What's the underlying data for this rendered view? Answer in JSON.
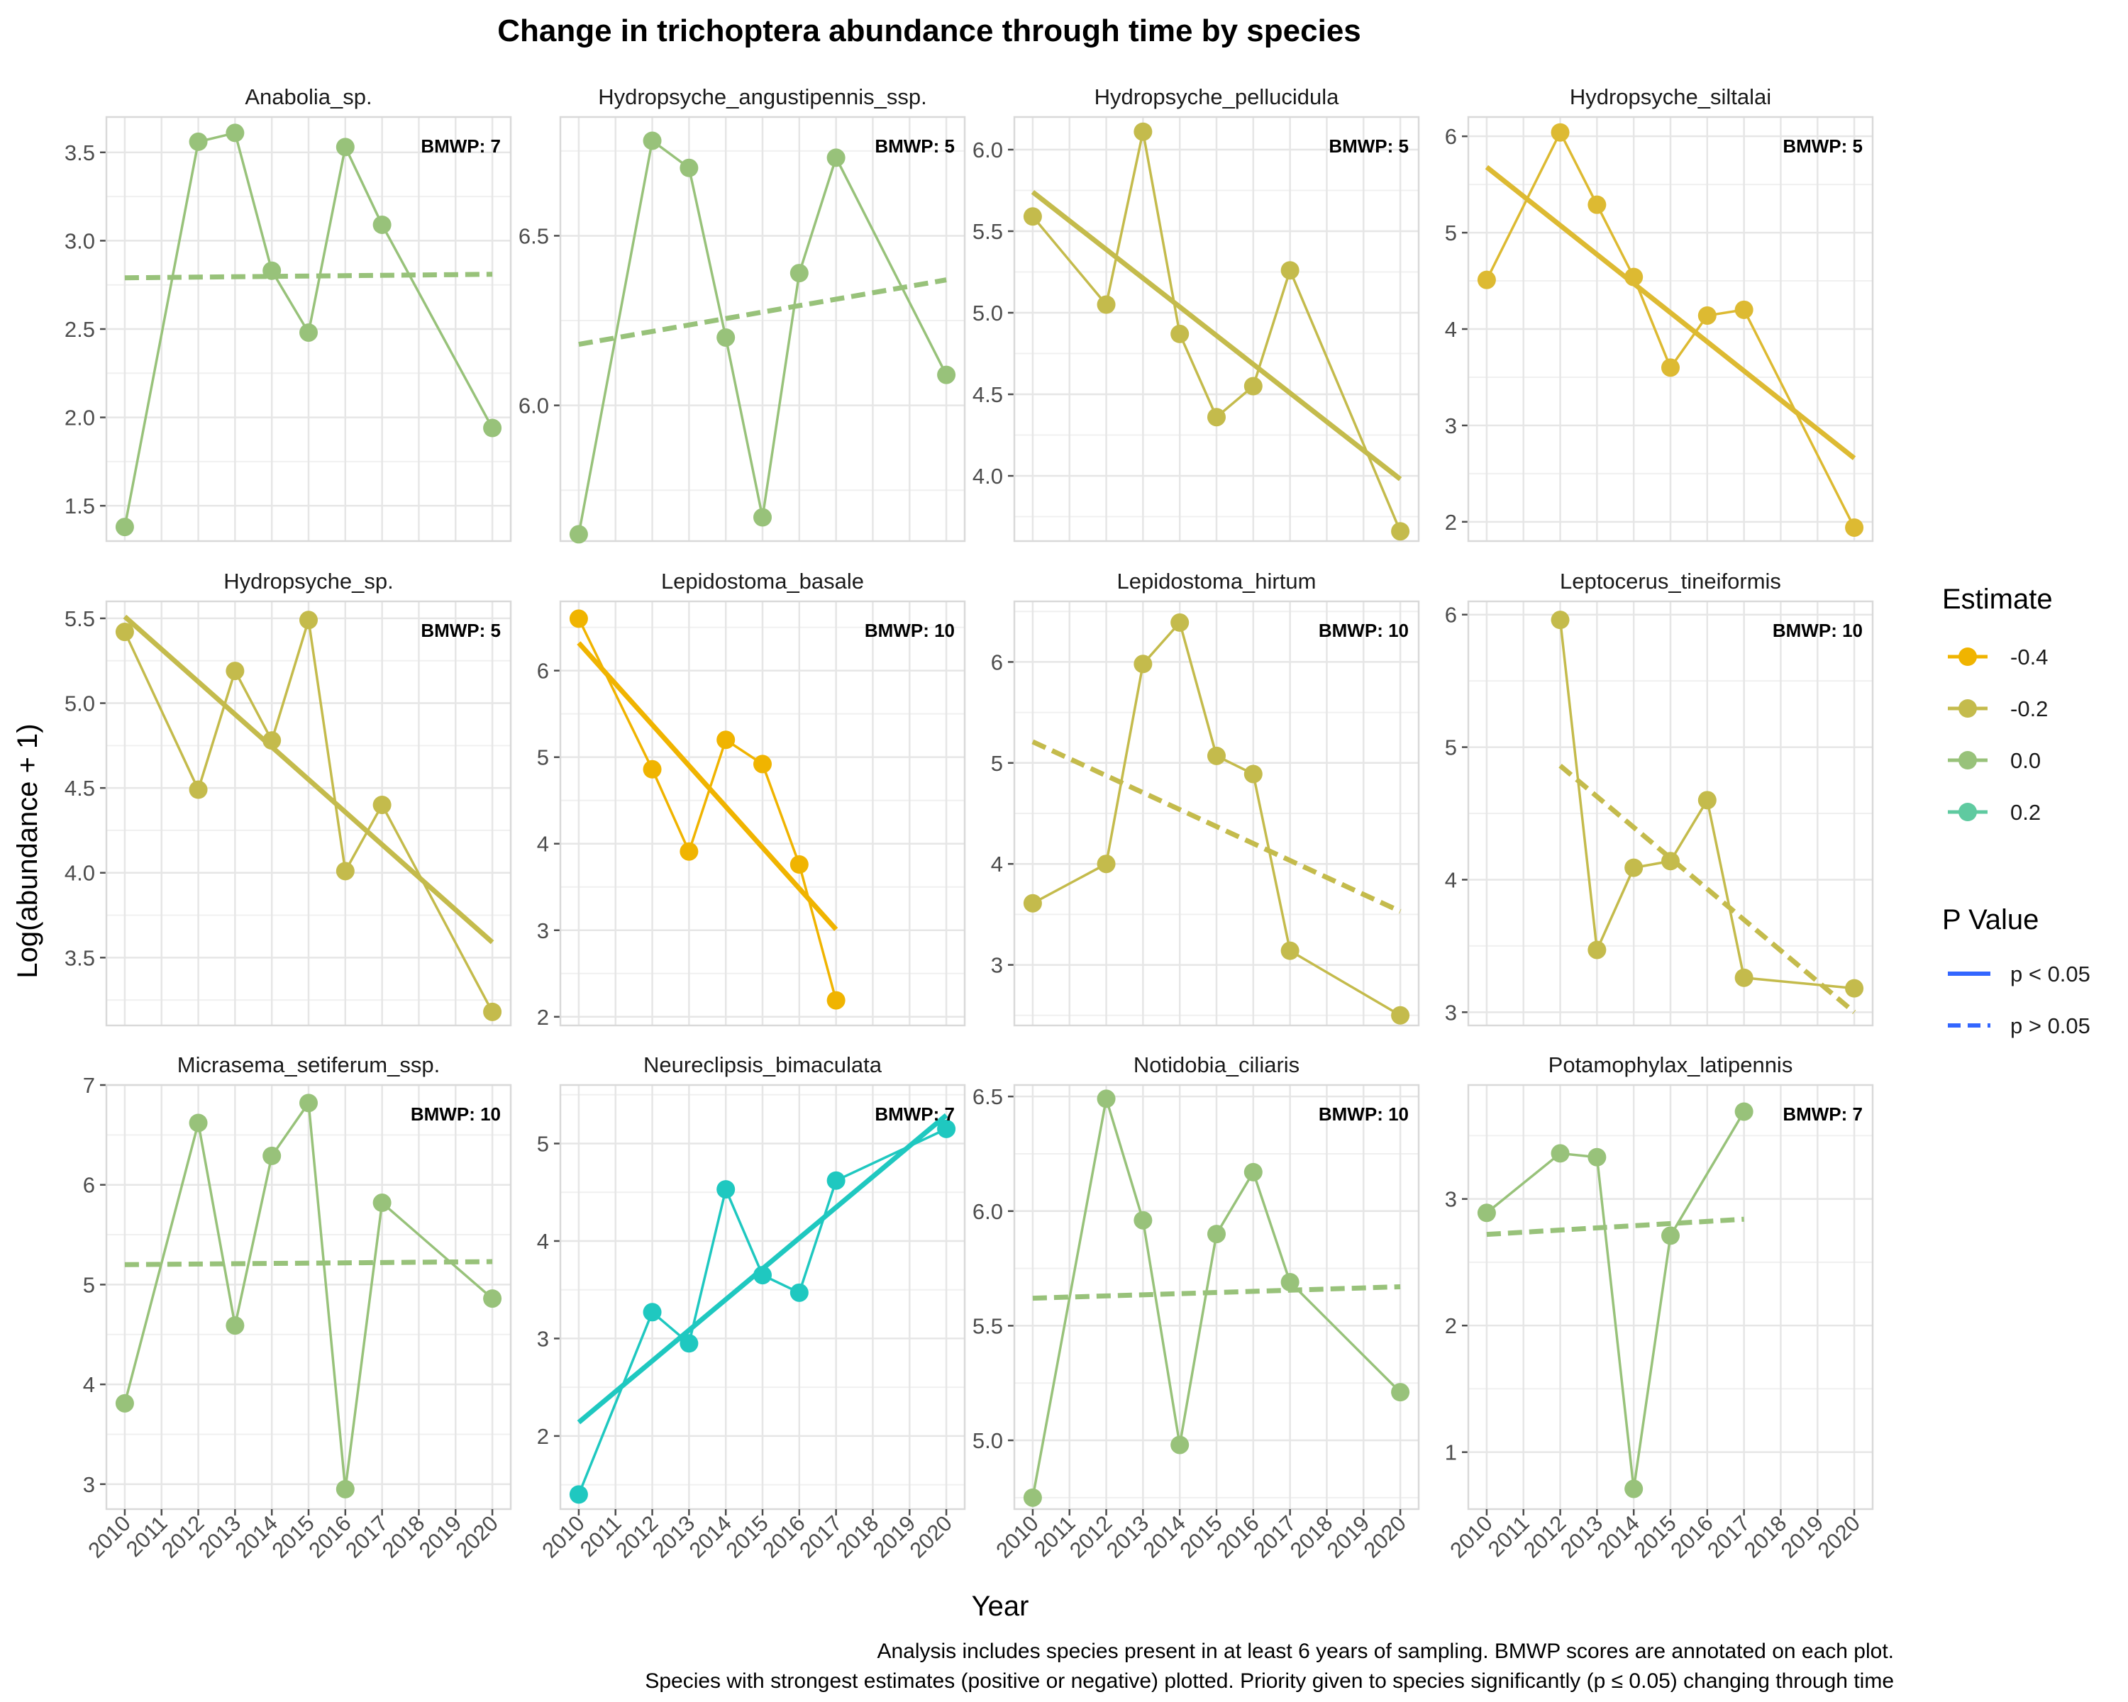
{
  "chart_data": {
    "type": "line",
    "title": "Change in trichoptera abundance through time by species",
    "xlabel": "Year",
    "ylabel": "Log(abundance + 1)",
    "x_ticks": [
      "2010",
      "2011",
      "2012",
      "2013",
      "2014",
      "2015",
      "2016",
      "2017",
      "2018",
      "2019",
      "2020"
    ],
    "caption": [
      "Analysis includes species present in at least 6 years of sampling. BMWP scores are annotated on each plot.",
      "Species with strongest estimates (positive or negative) plotted. Priority given to species significantly (p ≤ 0.05) changing through time"
    ],
    "grid": true,
    "facet_layout": "3 rows x 4 columns, free y scales, shared x axis",
    "legend_placement": "right",
    "legends": {
      "estimate": {
        "title": "Estimate",
        "entries": [
          {
            "label": "-0.4",
            "color": "#f0b400"
          },
          {
            "label": "-0.2",
            "color": "#c4bb4c"
          },
          {
            "label": "0.0",
            "color": "#98c27a"
          },
          {
            "label": "0.2",
            "color": "#5fcaa0"
          }
        ]
      },
      "pvalue": {
        "title": "P Value",
        "color": "#3366ff",
        "entries": [
          {
            "label": "p < 0.05",
            "linetype": "solid"
          },
          {
            "label": "p > 0.05",
            "linetype": "dashed"
          }
        ]
      }
    },
    "facets": [
      {
        "name": "Anabolia_sp.",
        "bmwp": "BMWP: 7",
        "color": "#98c27a",
        "significant": false,
        "ylim": [
          1.3,
          3.7
        ],
        "yticks": [
          "1.5",
          "2.0",
          "2.5",
          "3.0",
          "3.5"
        ],
        "ytick_values": [
          1.5,
          2.0,
          2.5,
          3.0,
          3.5
        ],
        "points": [
          [
            2010,
            1.38
          ],
          [
            2012,
            3.56
          ],
          [
            2013,
            3.61
          ],
          [
            2014,
            2.83
          ],
          [
            2015,
            2.48
          ],
          [
            2016,
            3.53
          ],
          [
            2017,
            3.09
          ],
          [
            2020,
            1.94
          ]
        ],
        "trend": [
          [
            2010,
            2.79
          ],
          [
            2020,
            2.81
          ]
        ]
      },
      {
        "name": "Hydropsyche_angustipennis_ssp.",
        "bmwp": "BMWP: 5",
        "color": "#98c27a",
        "significant": false,
        "ylim": [
          5.6,
          6.85
        ],
        "yticks": [
          "6.0",
          "6.5"
        ],
        "ytick_values": [
          6.0,
          6.5
        ],
        "points": [
          [
            2010,
            5.62
          ],
          [
            2012,
            6.78
          ],
          [
            2013,
            6.7
          ],
          [
            2014,
            6.2
          ],
          [
            2015,
            5.67
          ],
          [
            2016,
            6.39
          ],
          [
            2017,
            6.73
          ],
          [
            2020,
            6.09
          ]
        ],
        "trend": [
          [
            2010,
            6.18
          ],
          [
            2020,
            6.37
          ]
        ]
      },
      {
        "name": "Hydropsyche_pellucidula",
        "bmwp": "BMWP: 5",
        "color": "#c4bb4c",
        "significant": true,
        "ylim": [
          3.6,
          6.2
        ],
        "yticks": [
          "4.0",
          "4.5",
          "5.0",
          "5.5",
          "6.0"
        ],
        "ytick_values": [
          4.0,
          4.5,
          5.0,
          5.5,
          6.0
        ],
        "points": [
          [
            2010,
            5.59
          ],
          [
            2012,
            5.05
          ],
          [
            2013,
            6.11
          ],
          [
            2014,
            4.87
          ],
          [
            2015,
            4.36
          ],
          [
            2016,
            4.55
          ],
          [
            2017,
            5.26
          ],
          [
            2020,
            3.66
          ]
        ],
        "trend": [
          [
            2010,
            5.74
          ],
          [
            2020,
            3.98
          ]
        ]
      },
      {
        "name": "Hydropsyche_siltalai",
        "bmwp": "BMWP: 5",
        "color": "#ddba32",
        "significant": true,
        "ylim": [
          1.8,
          6.2
        ],
        "yticks": [
          "2",
          "3",
          "4",
          "5",
          "6"
        ],
        "ytick_values": [
          2,
          3,
          4,
          5,
          6
        ],
        "points": [
          [
            2010,
            4.51
          ],
          [
            2012,
            6.04
          ],
          [
            2013,
            5.29
          ],
          [
            2014,
            4.54
          ],
          [
            2015,
            3.6
          ],
          [
            2016,
            4.14
          ],
          [
            2017,
            4.2
          ],
          [
            2020,
            1.94
          ]
        ],
        "trend": [
          [
            2010,
            5.68
          ],
          [
            2020,
            2.66
          ]
        ]
      },
      {
        "name": "Hydropsyche_sp.",
        "bmwp": "BMWP: 5",
        "color": "#c4bb4c",
        "significant": true,
        "ylim": [
          3.1,
          5.6
        ],
        "yticks": [
          "3.5",
          "4.0",
          "4.5",
          "5.0",
          "5.5"
        ],
        "ytick_values": [
          3.5,
          4.0,
          4.5,
          5.0,
          5.5
        ],
        "points": [
          [
            2010,
            5.42
          ],
          [
            2012,
            4.49
          ],
          [
            2013,
            5.19
          ],
          [
            2014,
            4.78
          ],
          [
            2015,
            5.49
          ],
          [
            2016,
            4.01
          ],
          [
            2017,
            4.4
          ],
          [
            2020,
            3.18
          ]
        ],
        "trend": [
          [
            2010,
            5.51
          ],
          [
            2020,
            3.59
          ]
        ]
      },
      {
        "name": "Lepidostoma_basale",
        "bmwp": "BMWP: 10",
        "color": "#f0b400",
        "significant": true,
        "ylim": [
          1.9,
          6.8
        ],
        "yticks": [
          "2",
          "3",
          "4",
          "5",
          "6"
        ],
        "ytick_values": [
          2,
          3,
          4,
          5,
          6
        ],
        "points": [
          [
            2010,
            6.6
          ],
          [
            2012,
            4.86
          ],
          [
            2013,
            3.91
          ],
          [
            2014,
            5.2
          ],
          [
            2015,
            4.92
          ],
          [
            2016,
            3.76
          ],
          [
            2017,
            2.19
          ]
        ],
        "trend": [
          [
            2010,
            6.32
          ],
          [
            2017,
            3.01
          ]
        ]
      },
      {
        "name": "Lepidostoma_hirtum",
        "bmwp": "BMWP: 10",
        "color": "#c4bb4c",
        "significant": false,
        "ylim": [
          2.4,
          6.6
        ],
        "yticks": [
          "3",
          "4",
          "5",
          "6"
        ],
        "ytick_values": [
          3,
          4,
          5,
          6
        ],
        "points": [
          [
            2010,
            3.61
          ],
          [
            2012,
            4.0
          ],
          [
            2013,
            5.98
          ],
          [
            2014,
            6.39
          ],
          [
            2015,
            5.07
          ],
          [
            2016,
            4.89
          ],
          [
            2017,
            3.14
          ],
          [
            2020,
            2.5
          ]
        ],
        "trend": [
          [
            2010,
            5.21
          ],
          [
            2020,
            3.53
          ]
        ]
      },
      {
        "name": "Leptocerus_tineiformis",
        "bmwp": "BMWP: 10",
        "color": "#c4bb4c",
        "significant": false,
        "ylim": [
          2.9,
          6.1
        ],
        "yticks": [
          "3",
          "4",
          "5",
          "6"
        ],
        "ytick_values": [
          3,
          4,
          5,
          6
        ],
        "points": [
          [
            2012,
            5.96
          ],
          [
            2013,
            3.47
          ],
          [
            2014,
            4.09
          ],
          [
            2015,
            4.14
          ],
          [
            2016,
            4.6
          ],
          [
            2017,
            3.26
          ],
          [
            2020,
            3.18
          ]
        ],
        "trend": [
          [
            2012,
            4.86
          ],
          [
            2020,
            3.0
          ]
        ]
      },
      {
        "name": "Micrasema_setiferum_ssp.",
        "bmwp": "BMWP: 10",
        "color": "#98c27a",
        "significant": false,
        "ylim": [
          2.75,
          7.0
        ],
        "yticks": [
          "3",
          "4",
          "5",
          "6",
          "7"
        ],
        "ytick_values": [
          3,
          4,
          5,
          6,
          7
        ],
        "points": [
          [
            2010,
            3.81
          ],
          [
            2012,
            6.62
          ],
          [
            2013,
            4.59
          ],
          [
            2014,
            6.29
          ],
          [
            2015,
            6.82
          ],
          [
            2016,
            2.95
          ],
          [
            2017,
            5.82
          ],
          [
            2020,
            4.86
          ]
        ],
        "trend": [
          [
            2010,
            5.2
          ],
          [
            2020,
            5.23
          ]
        ]
      },
      {
        "name": "Neureclipsis_bimaculata",
        "bmwp": "BMWP: 7",
        "color": "#1fc8c0",
        "significant": true,
        "ylim": [
          1.25,
          5.6
        ],
        "yticks": [
          "2",
          "3",
          "4",
          "5"
        ],
        "ytick_values": [
          2,
          3,
          4,
          5
        ],
        "points": [
          [
            2010,
            1.4
          ],
          [
            2012,
            3.27
          ],
          [
            2013,
            2.95
          ],
          [
            2014,
            4.53
          ],
          [
            2015,
            3.65
          ],
          [
            2016,
            3.47
          ],
          [
            2017,
            4.62
          ],
          [
            2020,
            5.15
          ]
        ],
        "trend": [
          [
            2010,
            2.14
          ],
          [
            2020,
            5.29
          ]
        ]
      },
      {
        "name": "Notidobia_ciliaris",
        "bmwp": "BMWP: 10",
        "color": "#98c27a",
        "significant": false,
        "ylim": [
          4.7,
          6.55
        ],
        "yticks": [
          "5.0",
          "5.5",
          "6.0",
          "6.5"
        ],
        "ytick_values": [
          5.0,
          5.5,
          6.0,
          6.5
        ],
        "points": [
          [
            2010,
            4.75
          ],
          [
            2012,
            6.49
          ],
          [
            2013,
            5.96
          ],
          [
            2014,
            4.98
          ],
          [
            2015,
            5.9
          ],
          [
            2016,
            6.17
          ],
          [
            2017,
            5.69
          ],
          [
            2020,
            5.21
          ]
        ],
        "trend": [
          [
            2010,
            5.62
          ],
          [
            2020,
            5.67
          ]
        ]
      },
      {
        "name": "Potamophylax_latipennis",
        "bmwp": "BMWP: 7",
        "color": "#98c27a",
        "significant": false,
        "ylim": [
          0.55,
          3.9
        ],
        "yticks": [
          "1",
          "2",
          "3"
        ],
        "ytick_values": [
          1,
          2,
          3
        ],
        "points": [
          [
            2010,
            2.89
          ],
          [
            2012,
            3.36
          ],
          [
            2013,
            3.33
          ],
          [
            2014,
            0.71
          ],
          [
            2015,
            2.71
          ],
          [
            2017,
            3.69
          ]
        ],
        "trend": [
          [
            2010,
            2.72
          ],
          [
            2017,
            2.84
          ]
        ]
      }
    ]
  }
}
